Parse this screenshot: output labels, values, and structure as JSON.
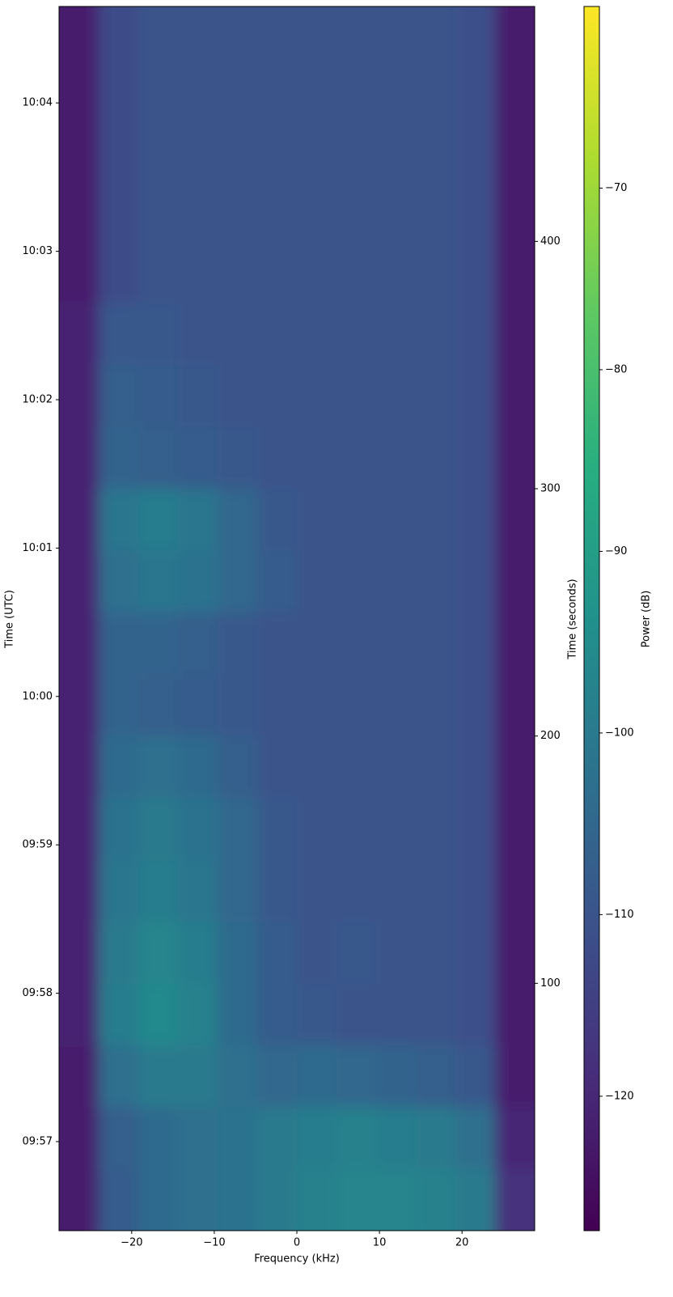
{
  "chart_data": {
    "type": "heatmap",
    "xlabel": "Frequency (kHz)",
    "ylabel": "Time (UTC)",
    "y2label": "Time (seconds)",
    "colorbar_label": "Power (dB)",
    "colormap": "viridis",
    "x_bins": [
      -28.8,
      -24,
      -19.2,
      -14.4,
      -9.6,
      -4.8,
      0,
      4.8,
      9.6,
      14.4,
      19.2,
      24,
      28.8
    ],
    "y_bins": [
      0,
      25,
      50,
      75,
      100,
      125,
      150,
      175,
      200,
      225,
      250,
      275,
      300,
      325,
      350,
      375,
      400,
      425,
      450,
      475,
      495
    ],
    "z": [
      [
        -122,
        -108,
        -104,
        -103,
        -102,
        -100,
        -98,
        -97,
        -97,
        -98,
        -100,
        -118
      ],
      [
        -122,
        -107,
        -104,
        -103,
        -102,
        -100,
        -99,
        -98,
        -99,
        -100,
        -103,
        -120
      ],
      [
        -122,
        -103,
        -100,
        -100,
        -103,
        -105,
        -104,
        -105,
        -106,
        -107,
        -109,
        -122
      ],
      [
        -121,
        -99,
        -96,
        -98,
        -104,
        -108,
        -109,
        -110,
        -110,
        -110,
        -111,
        -122
      ],
      [
        -121,
        -100,
        -97,
        -99,
        -104,
        -108,
        -110,
        -109,
        -110,
        -110,
        -111,
        -122
      ],
      [
        -121,
        -101,
        -99,
        -101,
        -105,
        -109,
        -110,
        -110,
        -110,
        -110,
        -111,
        -122
      ],
      [
        -121,
        -102,
        -100,
        -102,
        -105,
        -109,
        -110,
        -110,
        -110,
        -110,
        -111,
        -122
      ],
      [
        -121,
        -104,
        -103,
        -104,
        -107,
        -110,
        -110,
        -110,
        -110,
        -110,
        -111,
        -122
      ],
      [
        -121,
        -106,
        -107,
        -108,
        -109,
        -110,
        -110,
        -110,
        -110,
        -110,
        -111,
        -122
      ],
      [
        -121,
        -106,
        -106,
        -107,
        -109,
        -110,
        -110,
        -110,
        -110,
        -110,
        -111,
        -122
      ],
      [
        -121,
        -103,
        -101,
        -102,
        -105,
        -108,
        -110,
        -110,
        -110,
        -110,
        -111,
        -122
      ],
      [
        -121,
        -101,
        -99,
        -101,
        -105,
        -109,
        -110,
        -110,
        -110,
        -110,
        -111,
        -122
      ],
      [
        -121,
        -106,
        -107,
        -108,
        -109,
        -110,
        -110,
        -110,
        -110,
        -110,
        -111,
        -122
      ],
      [
        -121,
        -107,
        -108,
        -109,
        -110,
        -110,
        -110,
        -110,
        -110,
        -110,
        -111,
        -122
      ],
      [
        -121,
        -109,
        -109,
        -110,
        -110,
        -110,
        -110,
        -110,
        -110,
        -110,
        -111,
        -122
      ],
      [
        -122,
        -112,
        -110,
        -110,
        -110,
        -110,
        -110,
        -110,
        -110,
        -110,
        -111,
        -122
      ],
      [
        -122,
        -112,
        -110,
        -110,
        -110,
        -110,
        -110,
        -110,
        -110,
        -110,
        -111,
        -122
      ],
      [
        -122,
        -112,
        -110,
        -110,
        -110,
        -110,
        -110,
        -110,
        -110,
        -110,
        -111,
        -122
      ],
      [
        -122,
        -112,
        -110,
        -110,
        -110,
        -110,
        -110,
        -110,
        -110,
        -110,
        -111,
        -122
      ],
      [
        -122,
        -112,
        -110,
        -110,
        -110,
        -110,
        -110,
        -110,
        -110,
        -110,
        -111,
        -122
      ]
    ],
    "xlim": [
      -28.8,
      28.8
    ],
    "xticks": [
      {
        "value": -20,
        "label": "−20"
      },
      {
        "value": -10,
        "label": "−10"
      },
      0,
      10,
      20
    ],
    "ylim": [
      0,
      495
    ],
    "yticks": [
      {
        "value": 36,
        "label": "09:57"
      },
      {
        "value": 96,
        "label": "09:58"
      },
      {
        "value": 156,
        "label": "09:59"
      },
      {
        "value": 216,
        "label": "10:00"
      },
      {
        "value": 276,
        "label": "10:01"
      },
      {
        "value": 336,
        "label": "10:02"
      },
      {
        "value": 396,
        "label": "10:03"
      },
      {
        "value": 456,
        "label": "10:04"
      }
    ],
    "y2lim": [
      0,
      495
    ],
    "y2ticks": [
      100,
      200,
      300,
      400
    ],
    "clim": [
      -127.4,
      -60
    ],
    "cticks": [
      {
        "value": -120,
        "label": "−120"
      },
      {
        "value": -110,
        "label": "−110"
      },
      {
        "value": -100,
        "label": "−100"
      },
      {
        "value": -90,
        "label": "−90"
      },
      {
        "value": -80,
        "label": "−80"
      },
      {
        "value": -70,
        "label": "−70"
      }
    ]
  }
}
